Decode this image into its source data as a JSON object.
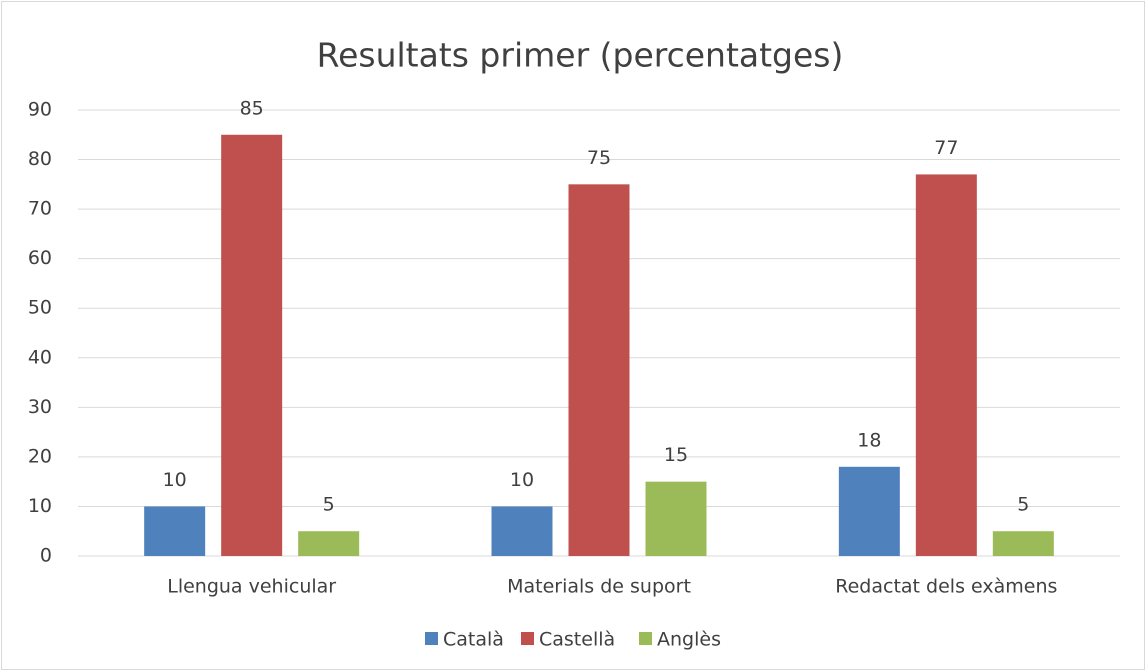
{
  "chart_data": {
    "type": "bar",
    "title": "Resultats primer (percentatges)",
    "categories": [
      "Llengua vehicular",
      "Materials de suport",
      "Redactat dels exàmens"
    ],
    "series": [
      {
        "name": "Català",
        "color": "#4f81bd",
        "values": [
          10,
          10,
          18
        ]
      },
      {
        "name": "Castellà",
        "color": "#c0504d",
        "values": [
          85,
          75,
          77
        ]
      },
      {
        "name": "Anglès",
        "color": "#9bbb59",
        "values": [
          5,
          15,
          5
        ]
      }
    ],
    "ylim": [
      0,
      90
    ],
    "yticks": [
      0,
      10,
      20,
      30,
      40,
      50,
      60,
      70,
      80,
      90
    ],
    "grid": true,
    "legend": "bottom"
  }
}
